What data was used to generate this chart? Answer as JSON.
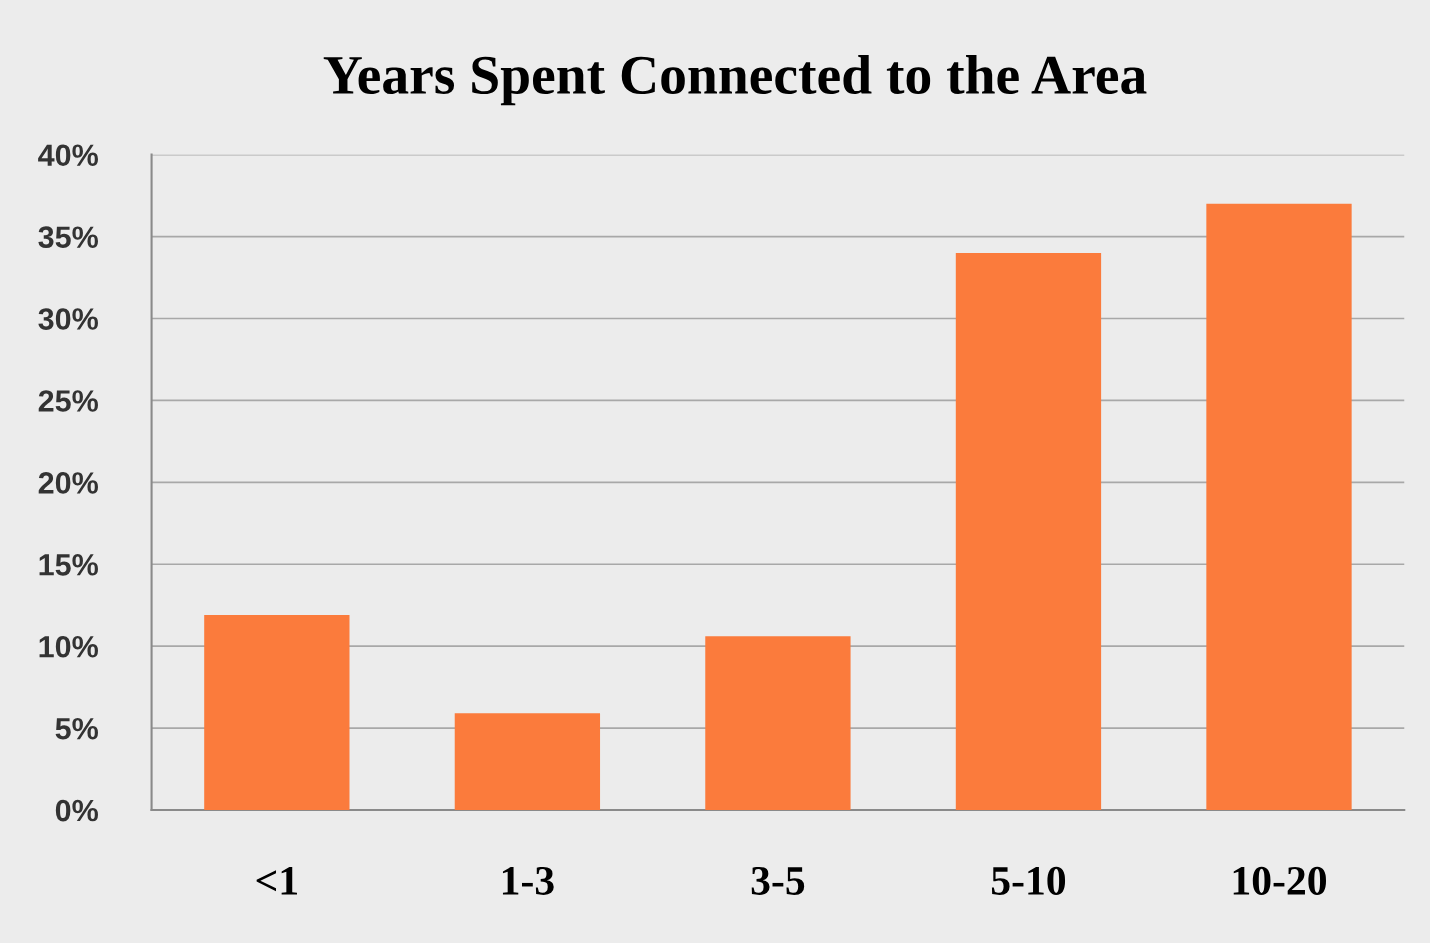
{
  "chart_data": {
    "type": "bar",
    "title": "Years Spent Connected to the Area",
    "categories": [
      "<1",
      "1-3",
      "3-5",
      "5-10",
      "10-20"
    ],
    "values": [
      11.9,
      5.9,
      10.6,
      34,
      37
    ],
    "color": "#fb7b3c",
    "ylim": [
      0,
      40
    ],
    "yticks": [
      {
        "value": 0,
        "label": "0%"
      },
      {
        "value": 5,
        "label": "5%"
      },
      {
        "value": 10,
        "label": "10%"
      },
      {
        "value": 15,
        "label": "15%"
      },
      {
        "value": 20,
        "label": "20%"
      },
      {
        "value": 25,
        "label": "25%"
      },
      {
        "value": 30,
        "label": "30%"
      },
      {
        "value": 35,
        "label": "35%"
      },
      {
        "value": 40,
        "label": "40%"
      }
    ],
    "grid": "y",
    "legend": false
  }
}
